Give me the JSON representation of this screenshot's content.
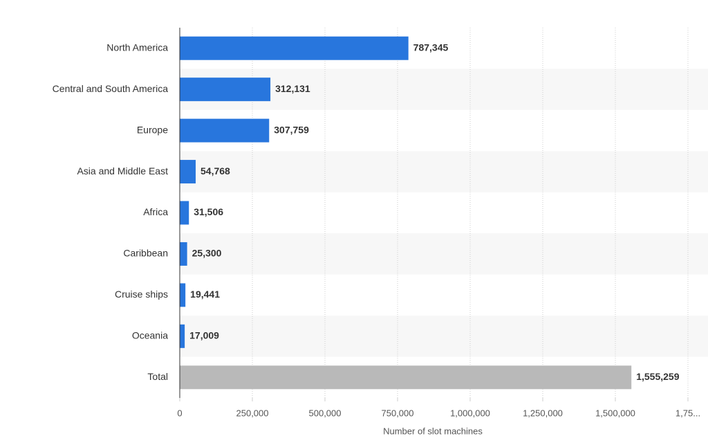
{
  "chart_data": {
    "type": "bar",
    "orientation": "horizontal",
    "categories": [
      "North America",
      "Central and South America",
      "Europe",
      "Asia and Middle East",
      "Africa",
      "Caribbean",
      "Cruise ships",
      "Oceania",
      "Total"
    ],
    "values": [
      787345,
      312131,
      307759,
      54768,
      31506,
      25300,
      19441,
      17009,
      1555259
    ],
    "value_labels": [
      "787,345",
      "312,131",
      "307,759",
      "54,768",
      "31,506",
      "25,300",
      "19,441",
      "17,009",
      "1,555,259"
    ],
    "colors": [
      "#2876dd",
      "#2876dd",
      "#2876dd",
      "#2876dd",
      "#2876dd",
      "#2876dd",
      "#2876dd",
      "#2876dd",
      "#b9b9b9"
    ],
    "xlim": [
      0,
      1750000
    ],
    "xticks": [
      0,
      {
        "value": 250000,
        "label": "250,000"
      },
      {
        "value": 500000,
        "label": "500,000"
      },
      {
        "value": 750000,
        "label": "750,000"
      },
      {
        "value": 1000000,
        "label": "1,000,000"
      },
      {
        "value": 1250000,
        "label": "1,250,000"
      },
      {
        "value": 1500000,
        "label": "1,500,000"
      },
      {
        "value": 1750000,
        "label": "1,75..."
      }
    ],
    "xlabel": "Number of slot machines",
    "grid": true
  }
}
